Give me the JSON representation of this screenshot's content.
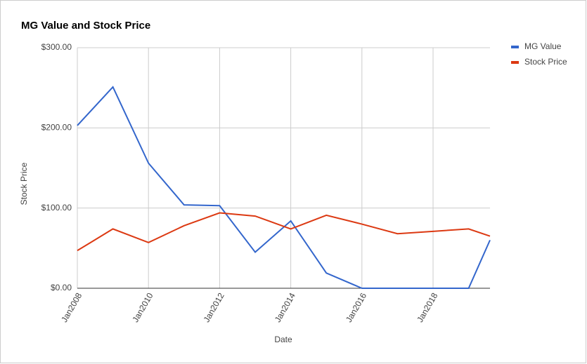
{
  "chart_data": {
    "type": "line",
    "title": "MG Value and Stock Price",
    "x_label": "Date",
    "y_label": "Stock Price",
    "x": [
      2008,
      2009,
      2010,
      2011,
      2012,
      2013,
      2014,
      2015,
      2016,
      2017,
      2018,
      2019,
      2019.6
    ],
    "series": [
      {
        "name": "MG Value",
        "color": "#3366cc",
        "values": [
          203,
          251,
          156,
          104,
          103,
          45,
          84,
          19,
          0,
          0,
          0,
          0,
          60
        ]
      },
      {
        "name": "Stock Price",
        "color": "#dc3912",
        "values": [
          47,
          74,
          57,
          78,
          94,
          90,
          74,
          91,
          80,
          68,
          71,
          74,
          65
        ]
      }
    ],
    "xlim": [
      2008,
      2019.6
    ],
    "xticks": [
      {
        "value": 2008,
        "label": "Jan2008"
      },
      {
        "value": 2010,
        "label": "Jan2010"
      },
      {
        "value": 2012,
        "label": "Jan2012"
      },
      {
        "value": 2014,
        "label": "Jan2014"
      },
      {
        "value": 2016,
        "label": "Jan2016"
      },
      {
        "value": 2018,
        "label": "Jan2018"
      }
    ],
    "ylim": [
      0,
      300
    ],
    "yticks": [
      {
        "value": 0,
        "label": "$0.00"
      },
      {
        "value": 100,
        "label": "$100.00"
      },
      {
        "value": 200,
        "label": "$200.00"
      },
      {
        "value": 300,
        "label": "$300.00"
      }
    ],
    "grid": true,
    "legend": "right"
  }
}
